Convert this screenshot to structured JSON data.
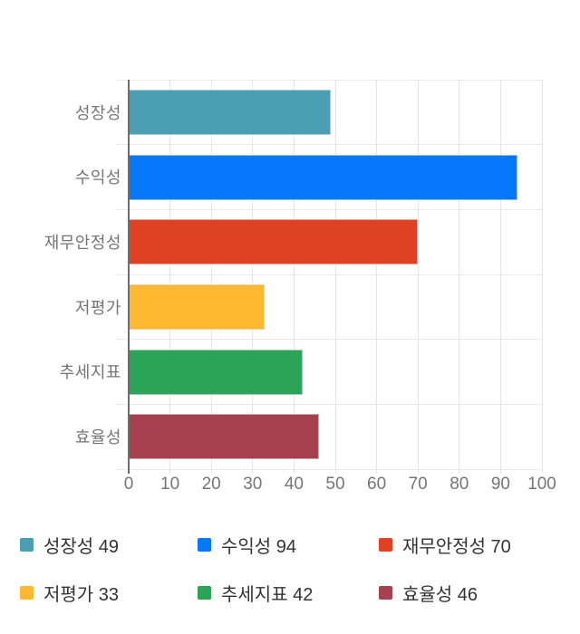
{
  "chart_data": {
    "type": "bar",
    "orientation": "horizontal",
    "title": "",
    "xlabel": "",
    "ylabel": "",
    "categories": [
      "성장성",
      "수익성",
      "재무안정성",
      "저평가",
      "추세지표",
      "효율성"
    ],
    "values": [
      49,
      94,
      70,
      33,
      42,
      46
    ],
    "colors": [
      "#4A9FB4",
      "#0878FA",
      "#E04123",
      "#FBB830",
      "#2BA457",
      "#A8414F"
    ],
    "xlim": [
      0,
      100
    ],
    "x_ticks": [
      0,
      10,
      20,
      30,
      40,
      50,
      60,
      70,
      80,
      90,
      100
    ],
    "grid": true,
    "legend_position": "bottom",
    "legend_items": [
      {
        "text": "성장성 49",
        "color": "#4A9FB4"
      },
      {
        "text": "수익성 94",
        "color": "#0878FA"
      },
      {
        "text": "재무안정성 70",
        "color": "#E04123"
      },
      {
        "text": "저평가 33",
        "color": "#FBB830"
      },
      {
        "text": "추세지표 42",
        "color": "#2BA457"
      },
      {
        "text": "효율성 46",
        "color": "#A8414F"
      }
    ]
  },
  "styles": {
    "axis_line_color": "#6e6e6e",
    "grid_color": "#e6e6e6",
    "axis_text_color": "#757575",
    "legend_text_color": "#333333",
    "background": "#ffffff"
  }
}
